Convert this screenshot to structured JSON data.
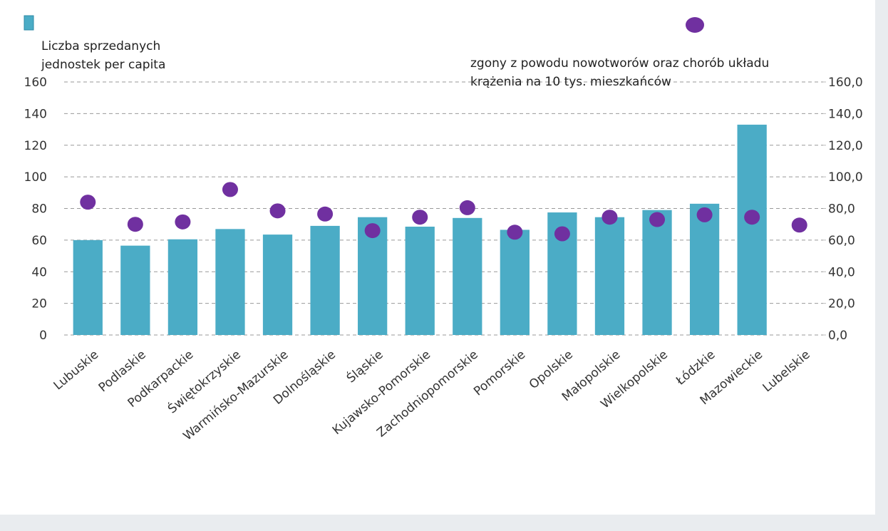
{
  "chart_data": {
    "type": "bar",
    "categories": [
      "Lubuskie",
      "Podlaskie",
      "Podkarpackie",
      "Świętokrzyskie",
      "Warmińsko-Mazurskie",
      "Dolnośląskie",
      "Śląskie",
      "Kujawsko-Pomorskie",
      "Zachodniopomorskie",
      "Pomorskie",
      "Opolskie",
      "Małopolskie",
      "Wielkopolskie",
      "Łódzkie",
      "Mazowieckie",
      "Lubelskie"
    ],
    "series": [
      {
        "name": "Liczba sprzedanych jednostek per capita",
        "type": "bar",
        "color": "#4bacc6",
        "values": [
          60,
          56.5,
          60.5,
          67,
          63.5,
          69,
          74.5,
          68.5,
          74,
          66.5,
          77.5,
          74.5,
          79,
          83,
          133,
          null
        ]
      },
      {
        "name": "zgony z powodu nowotworów oraz chorób układu krążenia na 10 tys. mieszkańców",
        "type": "scatter",
        "axis": "y2",
        "color": "#7030a0",
        "values": [
          84,
          70,
          71.5,
          92,
          78.5,
          76.5,
          66,
          74.5,
          80.5,
          65,
          64,
          74.5,
          73,
          76,
          74.5,
          69.5
        ]
      }
    ],
    "ylim": [
      0,
      160
    ],
    "yticks": [
      0,
      20,
      40,
      60,
      80,
      100,
      120,
      140,
      160
    ],
    "y2lim": [
      0,
      160
    ],
    "y2ticks": [
      {
        "value": 0,
        "label": "0,0"
      },
      {
        "value": 20,
        "label": "20,0"
      },
      {
        "value": 40,
        "label": "40,0"
      },
      {
        "value": 60,
        "label": "60,0"
      },
      {
        "value": 80,
        "label": "80,0"
      },
      {
        "value": 100,
        "label": "100,0"
      },
      {
        "value": 120,
        "label": "120,0"
      },
      {
        "value": 140,
        "label": "140,0"
      },
      {
        "value": 160,
        "label": "160,0"
      }
    ],
    "grid": true
  }
}
